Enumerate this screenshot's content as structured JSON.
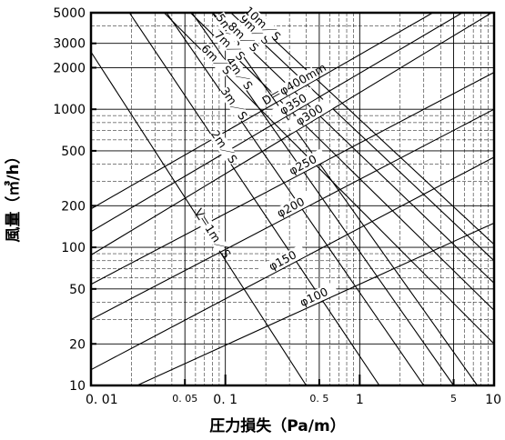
{
  "chart_data": {
    "type": "line",
    "x_scale": "log",
    "y_scale": "log",
    "xlim": [
      0.01,
      10
    ],
    "ylim": [
      10,
      5000
    ],
    "xlabel": "圧力損失（Pa/m）",
    "ylabel": "風量（㎥/h）",
    "x_ticks": [
      "0.01",
      "0.05",
      "0.1",
      "0.5",
      "1",
      "5",
      "10"
    ],
    "x_tick_labels": [
      "0. 01",
      "0. 05",
      "0. 1",
      "0. 5",
      "1",
      "5",
      "10"
    ],
    "y_ticks": [
      10,
      20,
      50,
      100,
      200,
      500,
      1000,
      2000,
      3000,
      5000
    ],
    "y_tick_labels": [
      "10",
      "20",
      "50",
      "100",
      "200",
      "500",
      "1000",
      "2000",
      "3000",
      "5000"
    ],
    "grid": true,
    "duct_diameter_series": [
      {
        "name": "D＝φ400mm",
        "diameter_mm": 400,
        "points": [
          [
            0.01,
            190
          ],
          [
            3.5,
            5000
          ]
        ]
      },
      {
        "name": "φ350",
        "diameter_mm": 350,
        "points": [
          [
            0.01,
            130
          ],
          [
            5.8,
            5000
          ]
        ]
      },
      {
        "name": "φ300",
        "diameter_mm": 300,
        "points": [
          [
            0.01,
            88
          ],
          [
            9.6,
            5000
          ]
        ]
      },
      {
        "name": "φ250",
        "diameter_mm": 250,
        "points": [
          [
            0.01,
            54
          ],
          [
            10,
            1850
          ]
        ]
      },
      {
        "name": "φ200",
        "diameter_mm": 200,
        "points": [
          [
            0.01,
            30
          ],
          [
            10,
            1000
          ]
        ]
      },
      {
        "name": "φ150",
        "diameter_mm": 150,
        "points": [
          [
            0.01,
            13
          ],
          [
            10,
            450
          ]
        ]
      },
      {
        "name": "φ100",
        "diameter_mm": 100,
        "points": [
          [
            0.022,
            10
          ],
          [
            10,
            150
          ]
        ]
      }
    ],
    "velocity_series": [
      {
        "name": "V＝1m／S",
        "velocity_m_s": 1,
        "points": [
          [
            0.01,
            2600
          ],
          [
            0.4,
            10
          ]
        ]
      },
      {
        "name": "2m／S",
        "velocity_m_s": 2,
        "points": [
          [
            0.01,
            13000
          ],
          [
            1.4,
            10
          ]
        ]
      },
      {
        "name": "3m／S",
        "velocity_m_s": 3,
        "points": [
          [
            0.01,
            31000
          ],
          [
            3.0,
            10
          ]
        ]
      },
      {
        "name": "4m／S",
        "velocity_m_s": 4,
        "points": [
          [
            0.01,
            55000
          ],
          [
            5.0,
            10
          ]
        ]
      },
      {
        "name": "5m／S",
        "velocity_m_s": 5,
        "points": [
          [
            0.01,
            86000
          ],
          [
            7.5,
            10
          ]
        ]
      },
      {
        "name": "6m／S",
        "velocity_m_s": 6,
        "points": [
          [
            0.035,
            5000
          ],
          [
            10,
            20
          ]
        ]
      },
      {
        "name": "7m／S",
        "velocity_m_s": 7,
        "points": [
          [
            0.055,
            5000
          ],
          [
            10,
            35
          ]
        ]
      },
      {
        "name": "8m／S",
        "velocity_m_s": 8,
        "points": [
          [
            0.08,
            5000
          ],
          [
            10,
            55
          ]
        ]
      },
      {
        "name": "9m／S",
        "velocity_m_s": 9,
        "points": [
          [
            0.11,
            5000
          ],
          [
            10,
            80
          ]
        ]
      },
      {
        "name": "10m／S",
        "velocity_m_s": 10,
        "points": [
          [
            0.14,
            5000
          ],
          [
            10,
            105
          ]
        ]
      }
    ],
    "line_color": "#000000",
    "background_color": "#ffffff"
  }
}
